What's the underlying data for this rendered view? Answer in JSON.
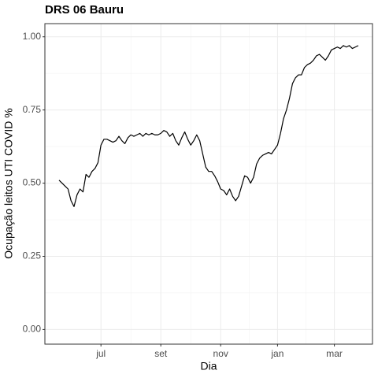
{
  "chart_data": {
    "type": "line",
    "title": "DRS 06 Bauru",
    "x_label": "Dia",
    "y_label": "Ocupação leitos UTI COVID %",
    "categories": [
      null,
      null,
      null,
      null,
      null,
      null,
      null,
      null,
      null,
      null,
      null,
      null,
      null,
      null,
      "jul",
      null,
      null,
      null,
      null,
      null,
      null,
      null,
      null,
      null,
      null,
      null,
      null,
      null,
      null,
      null,
      null,
      null,
      null,
      null,
      "set",
      null,
      null,
      null,
      null,
      null,
      null,
      null,
      null,
      null,
      null,
      null,
      null,
      null,
      null,
      null,
      null,
      null,
      null,
      null,
      "nov",
      null,
      null,
      null,
      null,
      null,
      null,
      null,
      null,
      null,
      null,
      null,
      null,
      null,
      null,
      null,
      null,
      null,
      null,
      "jan",
      null,
      null,
      null,
      null,
      null,
      null,
      null,
      null,
      null,
      null,
      null,
      null,
      null,
      null,
      null,
      null,
      null,
      null,
      "mar",
      null,
      null,
      null,
      null,
      null,
      null,
      null,
      null
    ],
    "values": [
      0.51,
      0.5,
      0.49,
      0.48,
      0.44,
      0.42,
      0.46,
      0.48,
      0.47,
      0.53,
      0.52,
      0.54,
      0.55,
      0.57,
      0.63,
      0.65,
      0.65,
      0.645,
      0.64,
      0.645,
      0.66,
      0.645,
      0.635,
      0.655,
      0.665,
      0.66,
      0.665,
      0.67,
      0.66,
      0.67,
      0.665,
      0.67,
      0.665,
      0.665,
      0.67,
      0.68,
      0.675,
      0.66,
      0.67,
      0.645,
      0.63,
      0.655,
      0.675,
      0.65,
      0.63,
      0.645,
      0.665,
      0.645,
      0.6,
      0.555,
      0.54,
      0.54,
      0.525,
      0.505,
      0.48,
      0.475,
      0.46,
      0.48,
      0.455,
      0.44,
      0.455,
      0.49,
      0.525,
      0.52,
      0.5,
      0.52,
      0.565,
      0.585,
      0.595,
      0.6,
      0.605,
      0.6,
      0.615,
      0.63,
      0.67,
      0.72,
      0.75,
      0.79,
      0.84,
      0.86,
      0.87,
      0.87,
      0.895,
      0.905,
      0.91,
      0.92,
      0.935,
      0.94,
      0.93,
      0.92,
      0.935,
      0.955,
      0.96,
      0.965,
      0.96,
      0.97,
      0.965,
      0.97,
      0.96,
      0.965,
      0.97
    ],
    "color": "#000000",
    "ylim": [
      -0.05,
      1.045
    ],
    "yticks": [
      {
        "value": 0,
        "label": "0.00"
      },
      {
        "value": 0.25,
        "label": "0.25"
      },
      {
        "value": 0.5,
        "label": "0.50"
      },
      {
        "value": 0.75,
        "label": "0.75"
      },
      {
        "value": 1,
        "label": "1.00"
      }
    ],
    "grid": true
  }
}
